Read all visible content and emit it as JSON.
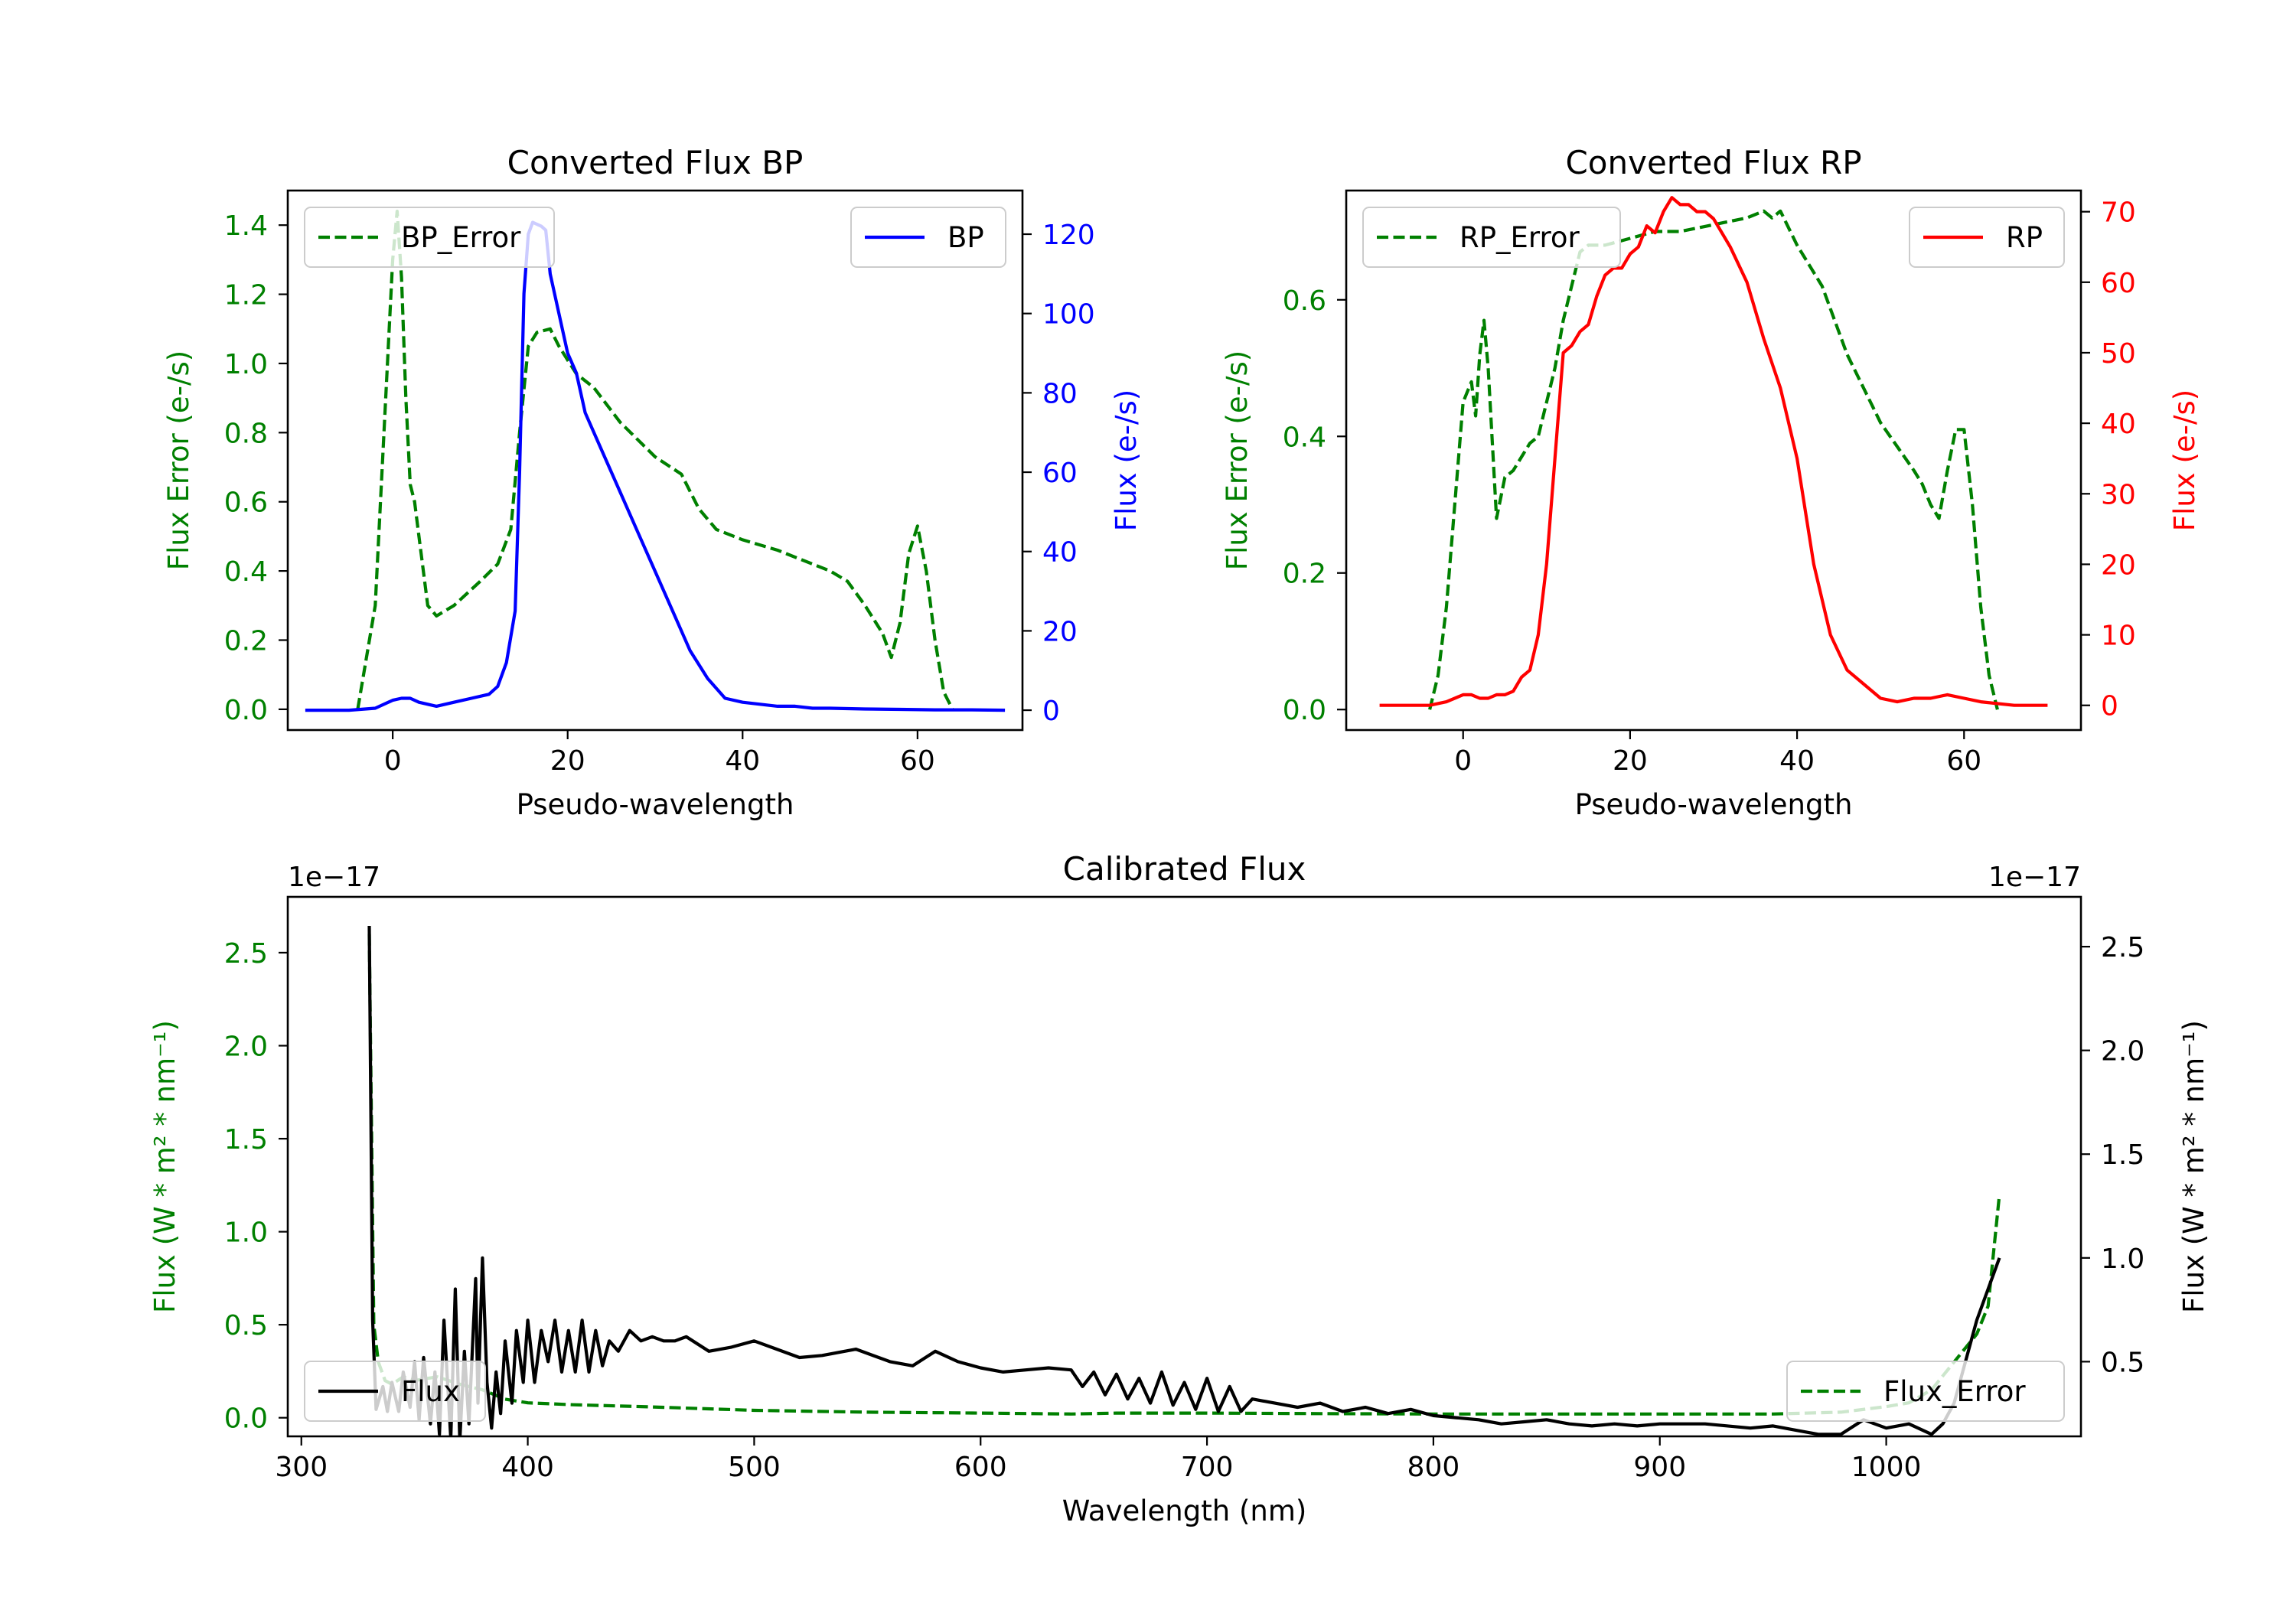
{
  "colors": {
    "green": "#008000",
    "blue": "#0000ff",
    "red": "#ff0000",
    "black": "#000000"
  },
  "chart_data": [
    {
      "id": "bp",
      "type": "line",
      "title": "Converted Flux BP",
      "xlabel": "Pseudo-wavelength",
      "ylabel_left": "Flux Error (e-/s)",
      "ylabel_right": "Flux (e-/s)",
      "xlim": [
        -12,
        72
      ],
      "ylim_left": [
        -0.06,
        1.5
      ],
      "ylim_right": [
        -5,
        131
      ],
      "xticks": [
        "0",
        "20",
        "40",
        "60"
      ],
      "yticks_left": [
        "0.0",
        "0.2",
        "0.4",
        "0.6",
        "0.8",
        "1.0",
        "1.2",
        "1.4"
      ],
      "yticks_right": [
        "0",
        "20",
        "40",
        "60",
        "80",
        "100",
        "120"
      ],
      "series": [
        {
          "name": "BP_Error",
          "axis": "left",
          "style": "dashed",
          "color": "#008000",
          "x": [
            -4,
            -2,
            -1,
            0,
            0.5,
            1,
            1.5,
            2,
            2.5,
            3,
            4,
            5,
            7,
            10,
            12,
            13.5,
            14.5,
            15.5,
            16.5,
            18,
            19,
            21,
            23,
            26,
            30,
            33,
            35,
            37,
            40,
            44,
            47,
            50,
            52,
            54,
            56,
            57,
            58,
            59,
            60,
            61,
            62,
            63,
            64
          ],
          "values": [
            0,
            0.3,
            0.8,
            1.3,
            1.44,
            1.25,
            0.9,
            0.65,
            0.6,
            0.5,
            0.3,
            0.27,
            0.3,
            0.37,
            0.42,
            0.52,
            0.8,
            1.05,
            1.09,
            1.1,
            1.05,
            0.97,
            0.93,
            0.83,
            0.73,
            0.68,
            0.58,
            0.52,
            0.49,
            0.46,
            0.43,
            0.4,
            0.37,
            0.3,
            0.22,
            0.15,
            0.25,
            0.45,
            0.53,
            0.4,
            0.2,
            0.05,
            0
          ]
        },
        {
          "name": "BP",
          "axis": "right",
          "style": "solid",
          "color": "#0000ff",
          "x": [
            -10,
            -5,
            -2,
            0,
            1,
            2,
            3,
            5,
            7,
            9,
            11,
            12,
            13,
            14,
            14.5,
            15,
            15.5,
            16,
            17,
            17.5,
            18,
            19,
            20,
            21,
            22,
            24,
            26,
            28,
            30,
            32,
            34,
            36,
            38,
            40,
            42,
            44,
            46,
            48,
            50,
            54,
            58,
            62,
            66,
            70
          ],
          "values": [
            0,
            0,
            0.5,
            2.5,
            3,
            3,
            2,
            1,
            2,
            3,
            4,
            6,
            12,
            25,
            60,
            105,
            120,
            123,
            122,
            121,
            110,
            100,
            90,
            85,
            75,
            65,
            55,
            45,
            35,
            25,
            15,
            8,
            3,
            2,
            1.5,
            1,
            1,
            0.5,
            0.5,
            0.3,
            0.2,
            0.1,
            0.1,
            0
          ]
        }
      ],
      "legends": {
        "left": "BP_Error",
        "right": "BP"
      }
    },
    {
      "id": "rp",
      "type": "line",
      "title": "Converted Flux RP",
      "xlabel": "Pseudo-wavelength",
      "ylabel_left": "Flux Error (e-/s)",
      "ylabel_right": "Flux (e-/s)",
      "xlim": [
        -14,
        74
      ],
      "ylim_left": [
        -0.03,
        0.76
      ],
      "ylim_right": [
        -3.5,
        73
      ],
      "xticks": [
        "0",
        "20",
        "40",
        "60"
      ],
      "yticks_left": [
        "0.0",
        "0.2",
        "0.4",
        "0.6"
      ],
      "yticks_right": [
        "0",
        "10",
        "20",
        "30",
        "40",
        "50",
        "60",
        "70"
      ],
      "series": [
        {
          "name": "RP_Error",
          "axis": "left",
          "style": "dashed",
          "color": "#008000",
          "x": [
            -4,
            -3,
            -2,
            -1,
            0,
            1,
            1.5,
            2,
            2.5,
            3,
            4,
            5,
            6,
            7,
            8,
            9,
            10,
            11,
            12,
            13,
            14,
            15,
            17,
            20,
            23,
            26,
            30,
            34,
            36,
            37,
            38,
            40,
            43,
            46,
            50,
            54,
            55,
            56,
            57,
            58,
            59,
            60,
            61,
            62,
            63,
            64
          ],
          "values": [
            0,
            0.05,
            0.15,
            0.3,
            0.45,
            0.48,
            0.43,
            0.52,
            0.57,
            0.5,
            0.28,
            0.34,
            0.35,
            0.37,
            0.39,
            0.4,
            0.45,
            0.5,
            0.57,
            0.62,
            0.67,
            0.68,
            0.68,
            0.69,
            0.7,
            0.7,
            0.71,
            0.72,
            0.73,
            0.72,
            0.73,
            0.68,
            0.62,
            0.52,
            0.42,
            0.35,
            0.33,
            0.3,
            0.28,
            0.35,
            0.41,
            0.41,
            0.3,
            0.15,
            0.05,
            0
          ]
        },
        {
          "name": "RP",
          "axis": "right",
          "style": "solid",
          "color": "#ff0000",
          "x": [
            -10,
            -4,
            -2,
            0,
            1,
            2,
            3,
            4,
            5,
            6,
            7,
            8,
            9,
            10,
            11,
            12,
            13,
            14,
            15,
            16,
            17,
            18,
            19,
            20,
            21,
            22,
            23,
            24,
            25,
            26,
            27,
            28,
            29,
            30,
            32,
            34,
            36,
            38,
            40,
            42,
            44,
            46,
            48,
            50,
            52,
            54,
            56,
            58,
            60,
            62,
            66,
            70
          ],
          "values": [
            0,
            0,
            0.5,
            1.5,
            1.5,
            1,
            1,
            1.5,
            1.5,
            2,
            4,
            5,
            10,
            20,
            35,
            50,
            51,
            53,
            54,
            58,
            61,
            62,
            62,
            64,
            65,
            68,
            67,
            70,
            72,
            71,
            71,
            70,
            70,
            69,
            65,
            60,
            52,
            45,
            35,
            20,
            10,
            5,
            3,
            1,
            0.5,
            1,
            1,
            1.5,
            1,
            0.5,
            0,
            0
          ]
        }
      ],
      "legends": {
        "left": "RP_Error",
        "right": "RP"
      }
    },
    {
      "id": "cal",
      "type": "line",
      "title": "Calibrated Flux",
      "xlabel": "Wavelength (nm)",
      "ylabel_left": "Flux (W * m² * nm⁻¹)",
      "ylabel_right": "Flux (W * m² * nm⁻¹)",
      "offset_left": "1e−17",
      "offset_right": "1e−17",
      "xlim": [
        294,
        1086
      ],
      "ylim_left": [
        -0.1,
        2.8
      ],
      "ylim_right": [
        0.14,
        2.74
      ],
      "xticks": [
        "300",
        "400",
        "500",
        "600",
        "700",
        "800",
        "900",
        "1000"
      ],
      "yticks_left": [
        "0.0",
        "0.5",
        "1.0",
        "1.5",
        "2.0",
        "2.5"
      ],
      "yticks_right": [
        "0.5",
        "1.0",
        "1.5",
        "2.0",
        "2.5"
      ],
      "series": [
        {
          "name": "Flux_Error",
          "axis": "left",
          "style": "dashed",
          "color": "#008000",
          "x": [
            330,
            332,
            334,
            337,
            340,
            345,
            350,
            360,
            370,
            380,
            390,
            400,
            420,
            450,
            500,
            550,
            600,
            640,
            660,
            700,
            750,
            800,
            850,
            900,
            950,
            980,
            1000,
            1010,
            1020,
            1030,
            1040,
            1045,
            1050
          ],
          "values": [
            2.6,
            0.5,
            0.3,
            0.2,
            0.18,
            0.22,
            0.2,
            0.22,
            0.18,
            0.15,
            0.1,
            0.08,
            0.07,
            0.06,
            0.04,
            0.03,
            0.025,
            0.02,
            0.025,
            0.025,
            0.022,
            0.02,
            0.02,
            0.02,
            0.02,
            0.03,
            0.06,
            0.08,
            0.15,
            0.3,
            0.45,
            0.6,
            1.2
          ]
        },
        {
          "name": "Flux",
          "axis": "right",
          "style": "solid",
          "color": "#000000",
          "x": [
            330,
            331.5,
            333,
            336,
            338,
            340,
            343,
            345,
            348,
            350,
            352,
            354,
            357,
            359,
            361,
            363,
            366,
            368,
            370,
            372,
            374,
            377,
            378,
            380,
            382,
            384,
            386,
            388,
            390,
            393,
            395,
            398,
            400,
            403,
            406,
            409,
            412,
            415,
            418,
            421,
            424,
            427,
            430,
            433,
            436,
            440,
            445,
            450,
            455,
            460,
            465,
            470,
            480,
            490,
            500,
            510,
            520,
            530,
            545,
            560,
            570,
            580,
            590,
            600,
            610,
            620,
            630,
            640,
            645,
            650,
            655,
            660,
            665,
            670,
            675,
            680,
            685,
            690,
            695,
            700,
            705,
            710,
            715,
            720,
            730,
            740,
            750,
            760,
            770,
            780,
            790,
            800,
            810,
            820,
            830,
            840,
            850,
            860,
            870,
            880,
            890,
            900,
            920,
            940,
            950,
            960,
            970,
            980,
            990,
            1000,
            1010,
            1020,
            1025,
            1030,
            1040,
            1050
          ],
          "values": [
            2.6,
            0.7,
            0.27,
            0.38,
            0.26,
            0.4,
            0.26,
            0.45,
            0.28,
            0.5,
            0.22,
            0.52,
            0.2,
            0.45,
            0.15,
            0.7,
            0.13,
            0.85,
            0.12,
            0.55,
            0.2,
            0.9,
            0.3,
            1.0,
            0.4,
            0.18,
            0.45,
            0.25,
            0.6,
            0.3,
            0.65,
            0.4,
            0.7,
            0.4,
            0.65,
            0.5,
            0.7,
            0.45,
            0.65,
            0.45,
            0.7,
            0.45,
            0.65,
            0.48,
            0.6,
            0.55,
            0.65,
            0.6,
            0.62,
            0.6,
            0.6,
            0.62,
            0.55,
            0.57,
            0.6,
            0.56,
            0.52,
            0.53,
            0.56,
            0.5,
            0.48,
            0.55,
            0.5,
            0.47,
            0.45,
            0.46,
            0.47,
            0.46,
            0.38,
            0.45,
            0.34,
            0.44,
            0.32,
            0.42,
            0.3,
            0.45,
            0.29,
            0.4,
            0.27,
            0.42,
            0.26,
            0.38,
            0.26,
            0.32,
            0.3,
            0.28,
            0.3,
            0.26,
            0.28,
            0.25,
            0.27,
            0.24,
            0.23,
            0.22,
            0.2,
            0.21,
            0.22,
            0.2,
            0.19,
            0.2,
            0.19,
            0.2,
            0.2,
            0.18,
            0.19,
            0.17,
            0.15,
            0.15,
            0.22,
            0.18,
            0.2,
            0.15,
            0.2,
            0.3,
            0.7,
            1.0
          ]
        }
      ],
      "legends": {
        "left": "Flux",
        "right": "Flux_Error"
      }
    }
  ]
}
